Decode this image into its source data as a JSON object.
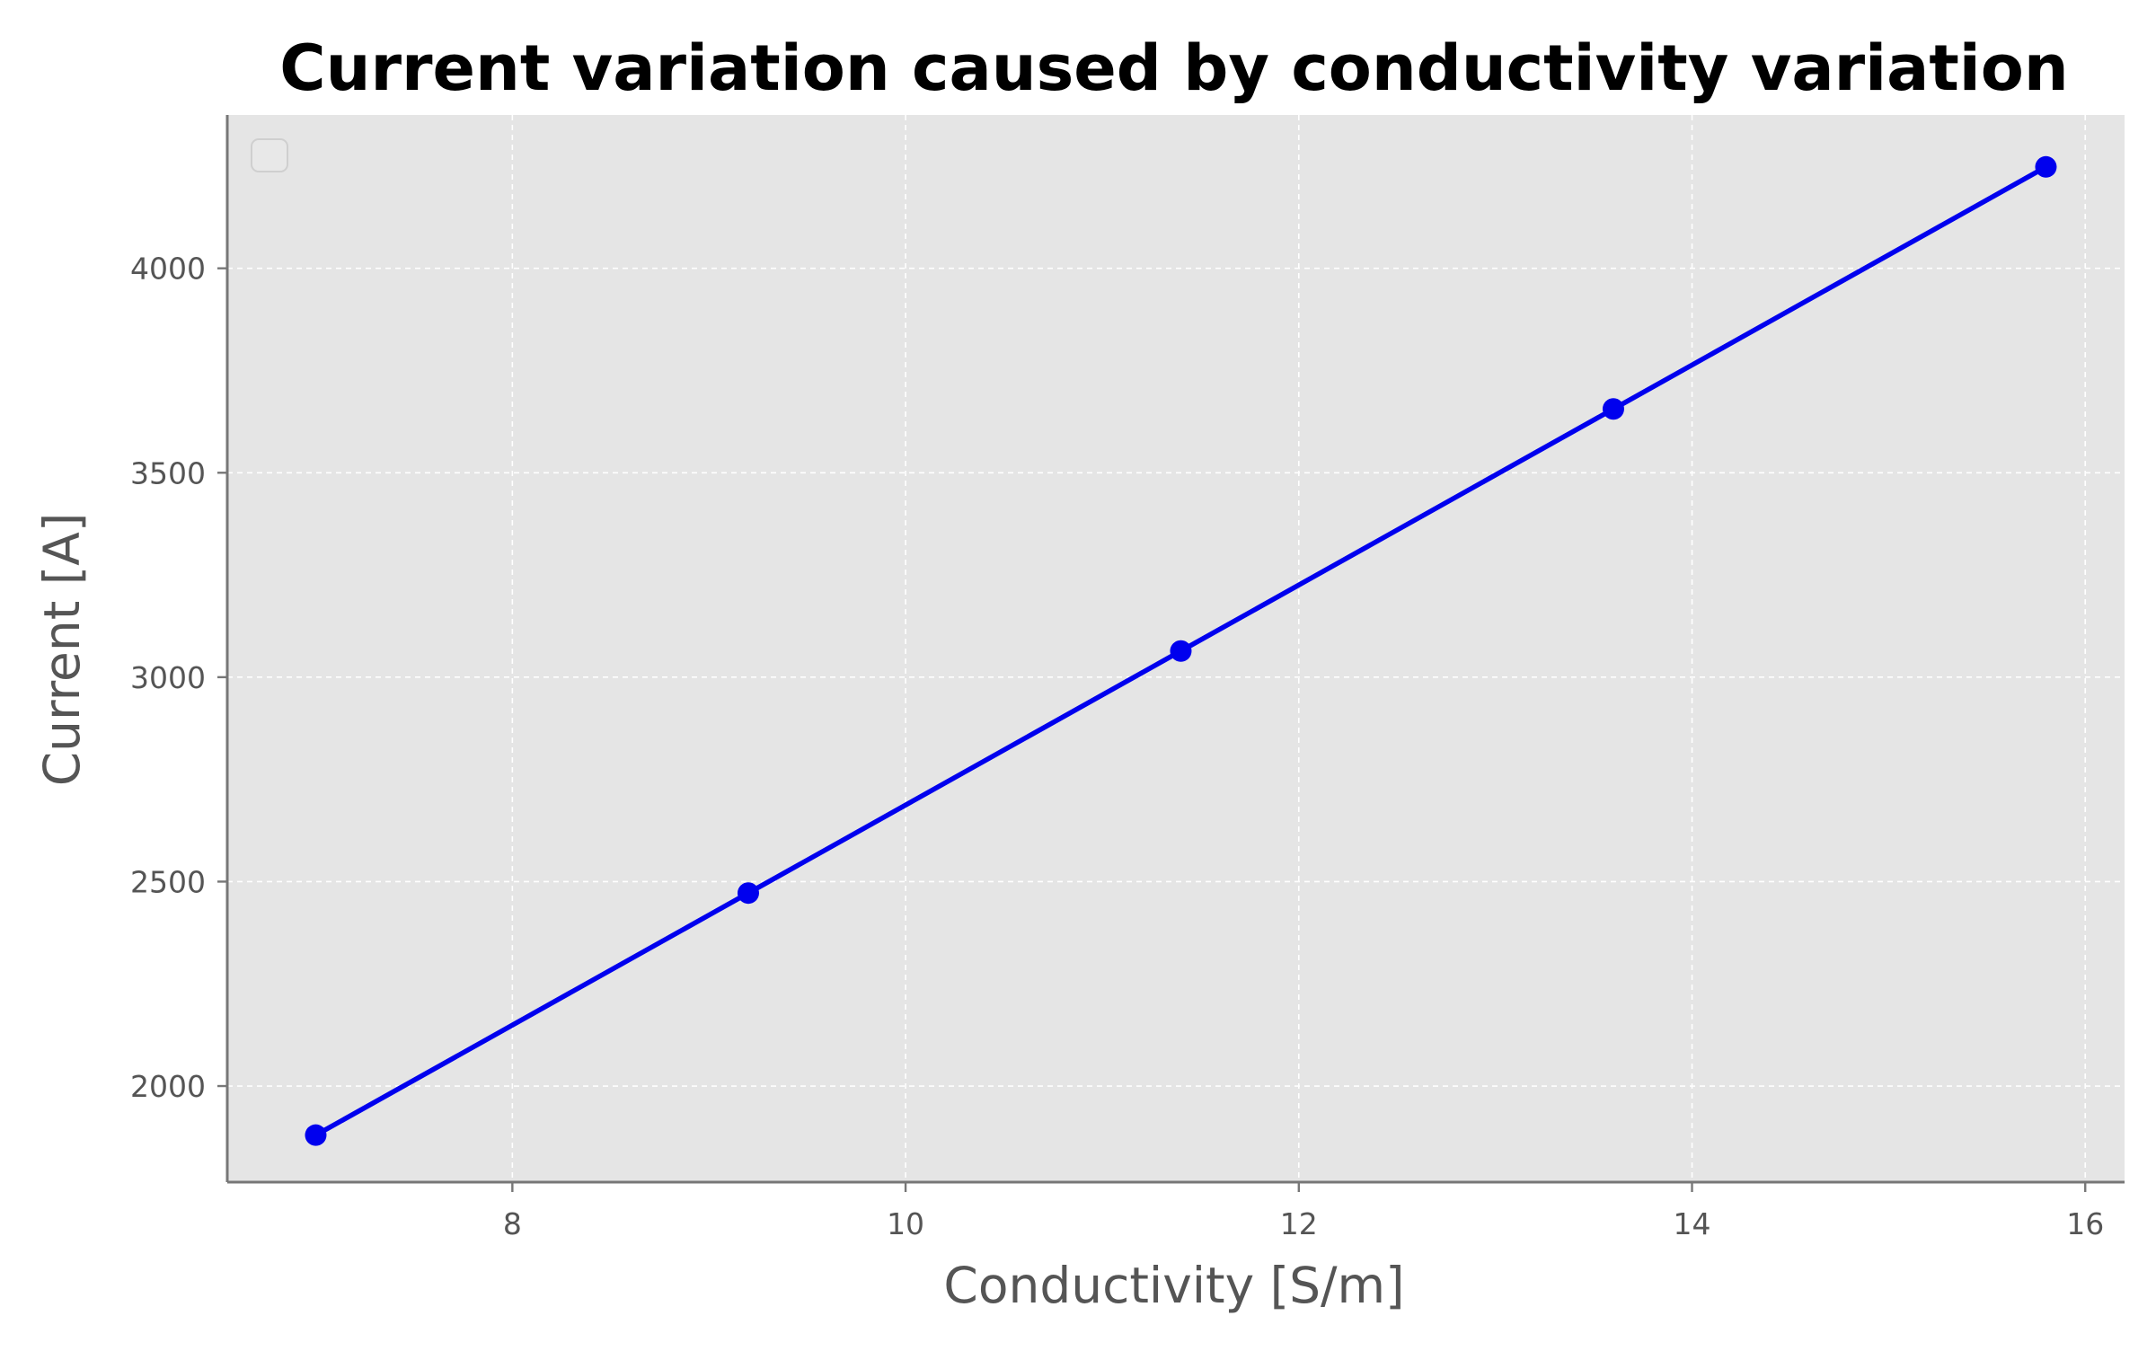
{
  "chart_data": {
    "type": "line",
    "title": "Current variation caused by conductivity variation",
    "xlabel": "Conductivity [S/m]",
    "ylabel": "Current [A]",
    "xlim": [
      6.55,
      16.2
    ],
    "ylim": [
      1765,
      4375
    ],
    "xticks": [
      8,
      10,
      12,
      14,
      16
    ],
    "yticks": [
      2000,
      2500,
      3000,
      3500,
      4000
    ],
    "grid": true,
    "legend": "top-left (empty)",
    "colors": {
      "plot_background": "#e5e5e5",
      "line": "#0000ee",
      "marker": "#0000ee",
      "grid": "#ffffff",
      "spine": "#777777"
    },
    "series": [
      {
        "x": [
          7.0,
          9.2,
          11.4,
          13.6,
          15.8
        ],
        "y": [
          1880,
          2472,
          3064,
          3656,
          4248
        ]
      }
    ]
  }
}
